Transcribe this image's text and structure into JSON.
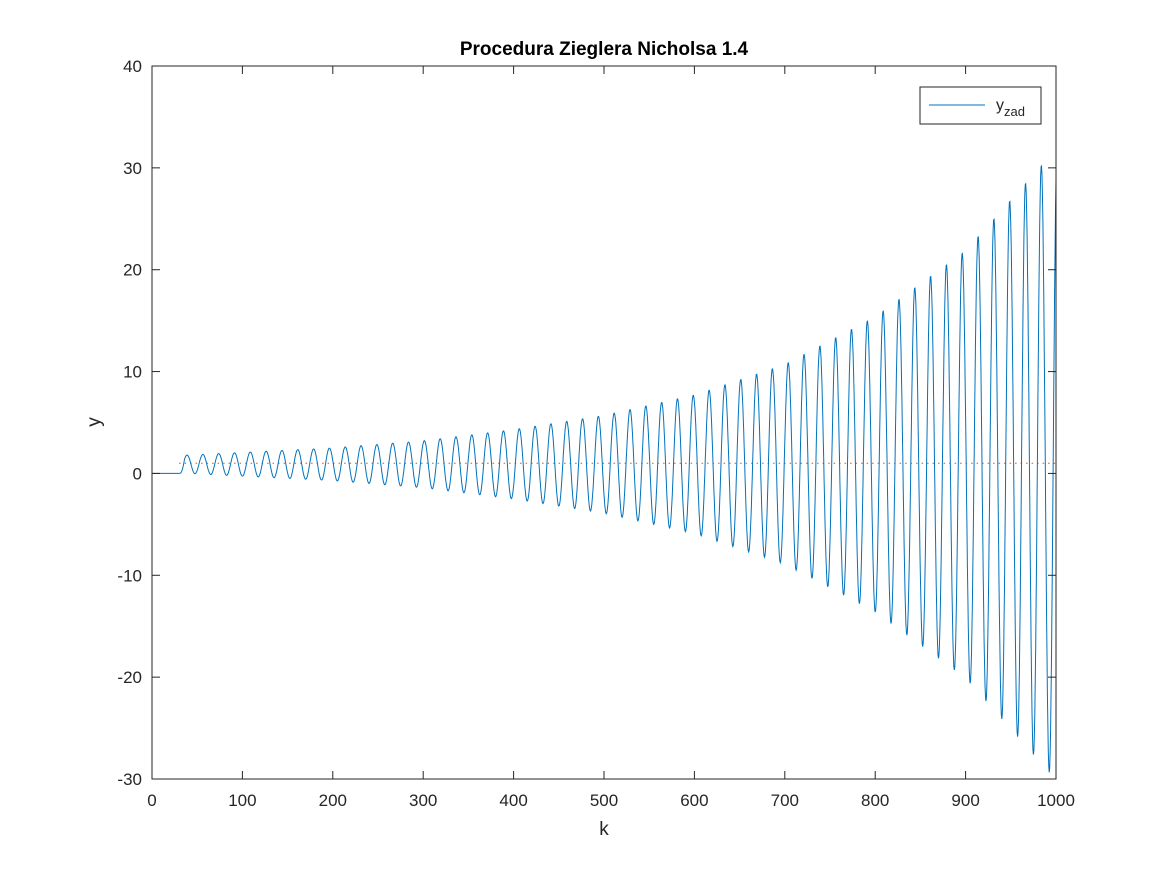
{
  "chart_data": {
    "type": "line",
    "title": "Procedura Zieglera Nicholsa 1.4",
    "xlabel": "k",
    "ylabel": "y",
    "xlim": [
      0,
      1000
    ],
    "ylim": [
      -30,
      40
    ],
    "xticks": [
      0,
      100,
      200,
      300,
      400,
      500,
      600,
      700,
      800,
      900,
      1000
    ],
    "yticks": [
      -30,
      -20,
      -10,
      0,
      10,
      20,
      30,
      40
    ],
    "grid": false,
    "legend_position": "top-right",
    "series": [
      {
        "name": "y",
        "color": "#0072BD",
        "style": "solid",
        "description": "oscillation with growing amplitude",
        "start_k": 30,
        "period": 17.5,
        "center": 0.9,
        "envelope": [
          {
            "k": 40,
            "amplitude": 0.9
          },
          {
            "k": 200,
            "amplitude": 1.6
          },
          {
            "k": 300,
            "amplitude": 2.3
          },
          {
            "k": 400,
            "amplitude": 3.4
          },
          {
            "k": 500,
            "amplitude": 4.8
          },
          {
            "k": 600,
            "amplitude": 6.8
          },
          {
            "k": 700,
            "amplitude": 9.8
          },
          {
            "k": 800,
            "amplitude": 14.5
          },
          {
            "k": 900,
            "amplitude": 21.0
          },
          {
            "k": 990,
            "amplitude": 30.0
          }
        ]
      },
      {
        "name": "zad",
        "color": "#D95319",
        "style": "dotted",
        "points": [
          [
            30,
            1
          ],
          [
            1000,
            1
          ]
        ]
      }
    ],
    "legend": {
      "entries": [
        {
          "main": "y",
          "subscript": "zad",
          "color": "#0072BD"
        }
      ]
    }
  }
}
